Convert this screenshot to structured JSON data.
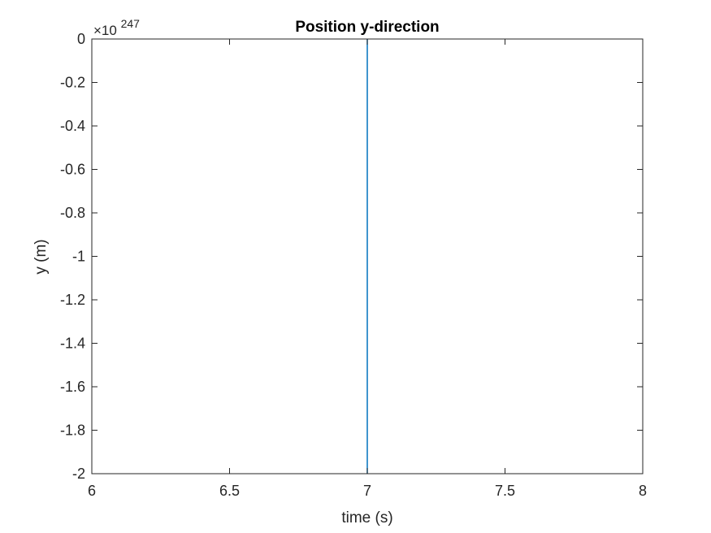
{
  "chart_data": {
    "type": "line",
    "title": "Position y-direction",
    "xlabel": "time (s)",
    "ylabel": "y (m)",
    "xlim": [
      6,
      8
    ],
    "ylim": [
      -2,
      0
    ],
    "y_multiplier": {
      "base": "×10",
      "exponent": "247"
    },
    "xticks": [
      6,
      6.5,
      7,
      7.5,
      8
    ],
    "xtick_labels": [
      "6",
      "6.5",
      "7",
      "7.5",
      "8"
    ],
    "yticks": [
      0,
      -0.2,
      -0.4,
      -0.6,
      -0.8,
      -1,
      -1.2,
      -1.4,
      -1.6,
      -1.8,
      -2
    ],
    "ytick_labels": [
      "0",
      "-0.2",
      "-0.4",
      "-0.6",
      "-0.8",
      "-1",
      "-1.2",
      "-1.4",
      "-1.6",
      "-1.8",
      "-2"
    ],
    "grid": false,
    "series": [
      {
        "color": "#0072BD",
        "x": [
          7.0,
          7.0
        ],
        "y": [
          0,
          -2
        ]
      }
    ]
  }
}
